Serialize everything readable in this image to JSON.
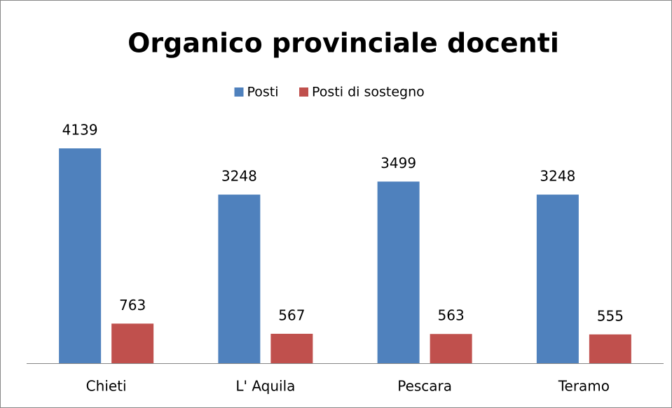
{
  "chart_data": {
    "type": "bar",
    "title": "Organico provinciale docenti",
    "categories": [
      "Chieti",
      "L' Aquila",
      "Pescara",
      "Teramo"
    ],
    "series": [
      {
        "name": "Posti",
        "color": "#4f81bd",
        "values": [
          4139,
          3248,
          3499,
          3248
        ]
      },
      {
        "name": "Posti di sostegno",
        "color": "#c0504d",
        "values": [
          763,
          567,
          563,
          555
        ]
      }
    ],
    "legend": "top"
  }
}
